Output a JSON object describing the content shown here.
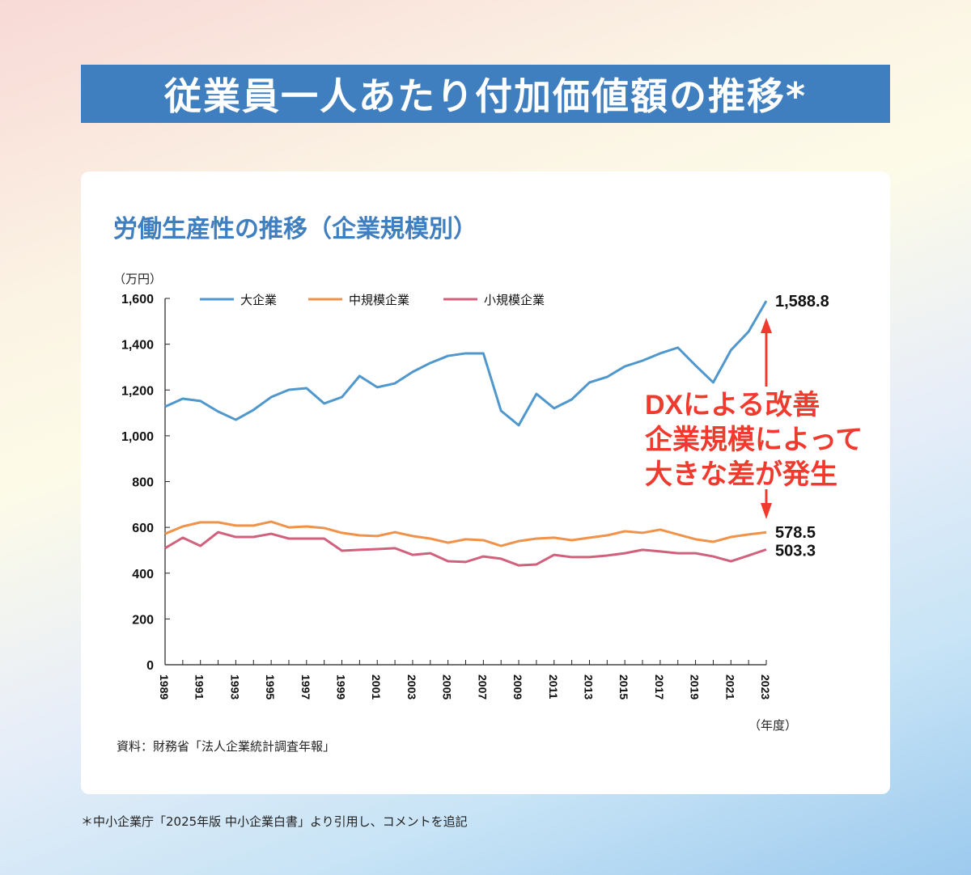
{
  "title": "従業員一人あたり付加価値額の推移*",
  "footnote": "＊中小企業庁「2025年版 中小企業白書」より引用し、コメントを追記",
  "chart_data": {
    "type": "line",
    "title": "労働生産性の推移（企業規模別）",
    "ylabel": "（万円）",
    "xlabel": "（年度）",
    "source": "資料：財務省「法人企業統計調査年報」",
    "ylim": [
      0,
      1600
    ],
    "yticks": [
      0,
      200,
      400,
      600,
      800,
      1000,
      1200,
      1400,
      1600
    ],
    "ytick_labels": [
      "0",
      "200",
      "400",
      "600",
      "800",
      "1,000",
      "1,200",
      "1,400",
      "1,600"
    ],
    "x": [
      1989,
      1990,
      1991,
      1992,
      1993,
      1994,
      1995,
      1996,
      1997,
      1998,
      1999,
      2000,
      2001,
      2002,
      2003,
      2004,
      2005,
      2006,
      2007,
      2008,
      2009,
      2010,
      2011,
      2012,
      2013,
      2014,
      2015,
      2016,
      2017,
      2018,
      2019,
      2020,
      2021,
      2022,
      2023
    ],
    "xtick_labels": [
      "1989",
      "1991",
      "1993",
      "1995",
      "1997",
      "1999",
      "2001",
      "2003",
      "2005",
      "2007",
      "2009",
      "2011",
      "2013",
      "2015",
      "2017",
      "2019",
      "2021",
      "2023"
    ],
    "legend": "top",
    "grid": false,
    "series": [
      {
        "name": "大企業",
        "color": "#4f97cc",
        "end_label": "1,588.8",
        "values": [
          1127,
          1162,
          1152,
          1106,
          1070,
          1113,
          1169,
          1201,
          1208,
          1141,
          1169,
          1261,
          1212,
          1229,
          1279,
          1318,
          1349,
          1360,
          1360,
          1109,
          1046,
          1183,
          1120,
          1159,
          1233,
          1257,
          1303,
          1328,
          1360,
          1385,
          1307,
          1233,
          1374,
          1455,
          1588.8
        ]
      },
      {
        "name": "中規模企業",
        "color": "#f0924a",
        "end_label": "578.5",
        "values": [
          572,
          604,
          622,
          622,
          608,
          608,
          625,
          600,
          604,
          597,
          576,
          565,
          562,
          579,
          562,
          551,
          533,
          548,
          544,
          519,
          540,
          551,
          555,
          544,
          555,
          565,
          583,
          576,
          590,
          569,
          548,
          537,
          558,
          569,
          578.5
        ]
      },
      {
        "name": "小規模企業",
        "color": "#d0607c",
        "end_label": "503.3",
        "values": [
          509,
          555,
          519,
          579,
          558,
          558,
          572,
          551,
          551,
          551,
          498,
          502,
          505,
          509,
          480,
          487,
          452,
          449,
          473,
          463,
          434,
          438,
          480,
          470,
          470,
          477,
          487,
          502,
          495,
          487,
          487,
          473,
          452,
          477,
          503.3
        ]
      }
    ],
    "annotation": {
      "lines": [
        "DXによる改善",
        "企業規模によって",
        "大きな差が発生"
      ],
      "color": "#f03a2e"
    }
  }
}
